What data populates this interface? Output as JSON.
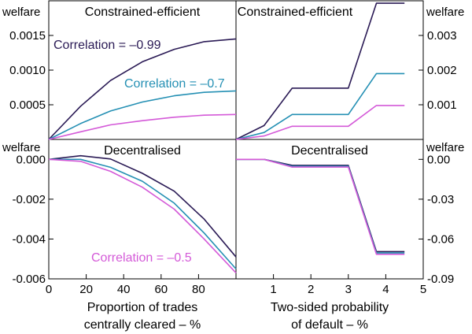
{
  "chart_data": [
    {
      "type": "line",
      "panel": "top-left",
      "title": "Constrained-efficient",
      "ylabel": "welfare",
      "xlim": [
        0,
        100
      ],
      "ylim": [
        0,
        0.002
      ],
      "yticks": [
        0.0005,
        0.001,
        0.0015
      ],
      "ytick_labels": [
        "0.0005",
        "0.0010",
        "0.0015"
      ],
      "series": [
        {
          "name": "Correlation = –0.99",
          "color": "#2a1a55",
          "x": [
            0,
            17,
            33,
            50,
            67,
            83,
            100
          ],
          "y": [
            0,
            0.00048,
            0.00085,
            0.00112,
            0.0013,
            0.00141,
            0.00145
          ]
        },
        {
          "name": "Correlation = –0.7",
          "color": "#2590b4",
          "x": [
            0,
            17,
            33,
            50,
            67,
            83,
            100
          ],
          "y": [
            0,
            0.00023,
            0.00041,
            0.00054,
            0.00063,
            0.00068,
            0.0007
          ]
        },
        {
          "name": "",
          "color": "#d45ad8",
          "x": [
            0,
            17,
            33,
            50,
            67,
            83,
            100
          ],
          "y": [
            0,
            0.00011,
            0.00021,
            0.00027,
            0.00032,
            0.00035,
            0.00036
          ]
        }
      ]
    },
    {
      "type": "line",
      "panel": "top-right",
      "title": "Constrained-efficient",
      "ylabel": "welfare",
      "xlim": [
        0,
        5
      ],
      "ylim": [
        0,
        0.004
      ],
      "yticks": [
        0.001,
        0.002,
        0.003
      ],
      "ytick_labels": [
        "0.001",
        "0.002",
        "0.003"
      ],
      "series": [
        {
          "color": "#2a1a55",
          "x": [
            0,
            0.75,
            1.5,
            3.0,
            3.75,
            4.5
          ],
          "y": [
            0,
            0.0004,
            0.00148,
            0.00148,
            0.00393,
            0.00393
          ]
        },
        {
          "color": "#2590b4",
          "x": [
            0,
            0.75,
            1.5,
            3.0,
            3.75,
            4.5
          ],
          "y": [
            0,
            0.0002,
            0.00072,
            0.00072,
            0.0019,
            0.0019
          ]
        },
        {
          "color": "#d45ad8",
          "x": [
            0,
            0.75,
            1.5,
            3.0,
            3.75,
            4.5
          ],
          "y": [
            0,
            0.0001,
            0.00038,
            0.00038,
            0.00098,
            0.00098
          ]
        }
      ]
    },
    {
      "type": "line",
      "panel": "bottom-left",
      "title": "Decentralised",
      "ylabel": "welfare",
      "xlim": [
        0,
        100
      ],
      "ylim": [
        -0.006,
        0.001
      ],
      "yticks": [
        0.0,
        -0.002,
        -0.004,
        -0.006
      ],
      "ytick_labels": [
        "0.000",
        "-0.002",
        "-0.004",
        "-0.006"
      ],
      "xticks": [
        0,
        20,
        40,
        60,
        80
      ],
      "xtick_labels": [
        "0",
        "20",
        "40",
        "60",
        "80"
      ],
      "xlabel": [
        "Proportion of trades",
        "centrally cleared – %"
      ],
      "series": [
        {
          "color": "#2a1a55",
          "x": [
            0,
            17,
            33,
            50,
            67,
            83,
            100
          ],
          "y": [
            0,
            0.00018,
            2e-05,
            -0.0007,
            -0.0016,
            -0.003,
            -0.0049
          ]
        },
        {
          "color": "#2590b4",
          "x": [
            0,
            17,
            33,
            50,
            67,
            83,
            100
          ],
          "y": [
            0,
            0.0,
            -0.0004,
            -0.0011,
            -0.0022,
            -0.0037,
            -0.0055
          ]
        },
        {
          "name": "Correlation = –0.5",
          "color": "#d45ad8",
          "x": [
            0,
            17,
            33,
            50,
            67,
            83,
            100
          ],
          "y": [
            0,
            -0.0001,
            -0.0006,
            -0.0014,
            -0.0025,
            -0.004,
            -0.0057
          ]
        }
      ]
    },
    {
      "type": "line",
      "panel": "bottom-right",
      "title": "Decentralised",
      "ylabel": "welfare",
      "xlim": [
        0,
        5
      ],
      "ylim": [
        -0.09,
        0.015
      ],
      "yticks": [
        0.0,
        -0.03,
        -0.06,
        -0.09
      ],
      "ytick_labels": [
        "0.00",
        "-0.03",
        "-0.06",
        "-0.09"
      ],
      "xticks": [
        1,
        2,
        3,
        4,
        5
      ],
      "xtick_labels": [
        "1",
        "2",
        "3",
        "4",
        "5"
      ],
      "xlabel": [
        "Two-sided probability",
        "of default – %"
      ],
      "series": [
        {
          "color": "#2a1a55",
          "x": [
            0,
            0.75,
            1.5,
            3.0,
            3.75,
            4.5
          ],
          "y": [
            0,
            0,
            -0.0045,
            -0.0045,
            -0.0695,
            -0.0695
          ]
        },
        {
          "color": "#2590b4",
          "x": [
            0,
            0.75,
            1.5,
            3.0,
            3.75,
            4.5
          ],
          "y": [
            0,
            0,
            -0.0052,
            -0.0052,
            -0.0705,
            -0.0705
          ]
        },
        {
          "color": "#d45ad8",
          "x": [
            0,
            0.75,
            1.5,
            3.0,
            3.75,
            4.5
          ],
          "y": [
            0,
            0,
            -0.0058,
            -0.0058,
            -0.0715,
            -0.0715
          ]
        }
      ]
    }
  ]
}
